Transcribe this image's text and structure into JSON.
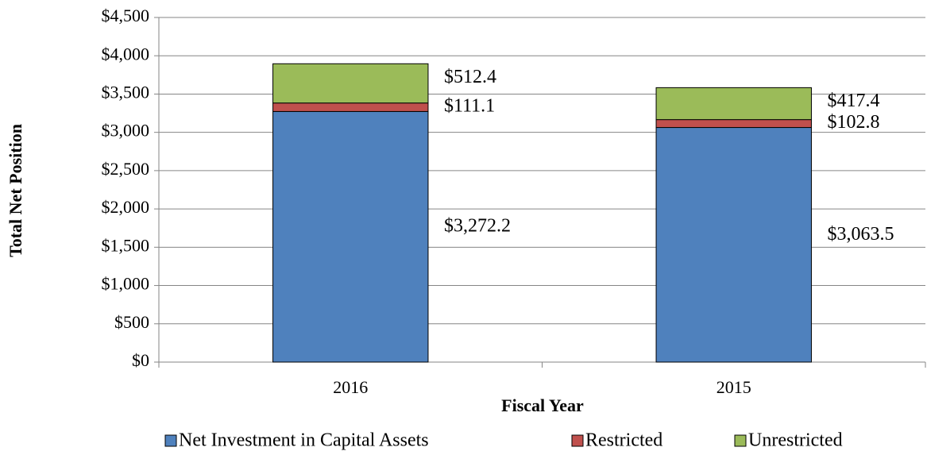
{
  "chart_data": {
    "type": "stacked_bar",
    "categories": [
      "2016",
      "2015"
    ],
    "series": [
      {
        "name": "Net Investment in Capital Assets",
        "color": "#4f81bd",
        "values": [
          3272.2,
          3063.5
        ],
        "value_labels": [
          "$3,272.2",
          "$3,063.5"
        ]
      },
      {
        "name": "Restricted",
        "color": "#c0504d",
        "values": [
          111.1,
          102.8
        ],
        "value_labels": [
          "$111.1",
          "$102.8"
        ]
      },
      {
        "name": "Unrestricted",
        "color": "#9bbb59",
        "values": [
          512.4,
          417.4
        ],
        "value_labels": [
          "$512.4",
          "$417.4"
        ]
      }
    ],
    "x_label": "Fiscal Year",
    "y_label": "Total Net Position",
    "ylim": [
      0,
      4500
    ],
    "yticks": [
      {
        "value": 0,
        "label": "$0"
      },
      {
        "value": 500,
        "label": "$500"
      },
      {
        "value": 1000,
        "label": "$1,000"
      },
      {
        "value": 1500,
        "label": "$1,500"
      },
      {
        "value": 2000,
        "label": "$2,000"
      },
      {
        "value": 2500,
        "label": "$2,500"
      },
      {
        "value": 3000,
        "label": "$3,000"
      },
      {
        "value": 3500,
        "label": "$3,500"
      },
      {
        "value": 4000,
        "label": "$4,000"
      },
      {
        "value": 4500,
        "label": "$4,500"
      }
    ],
    "grid": true,
    "legend": "bottom"
  }
}
